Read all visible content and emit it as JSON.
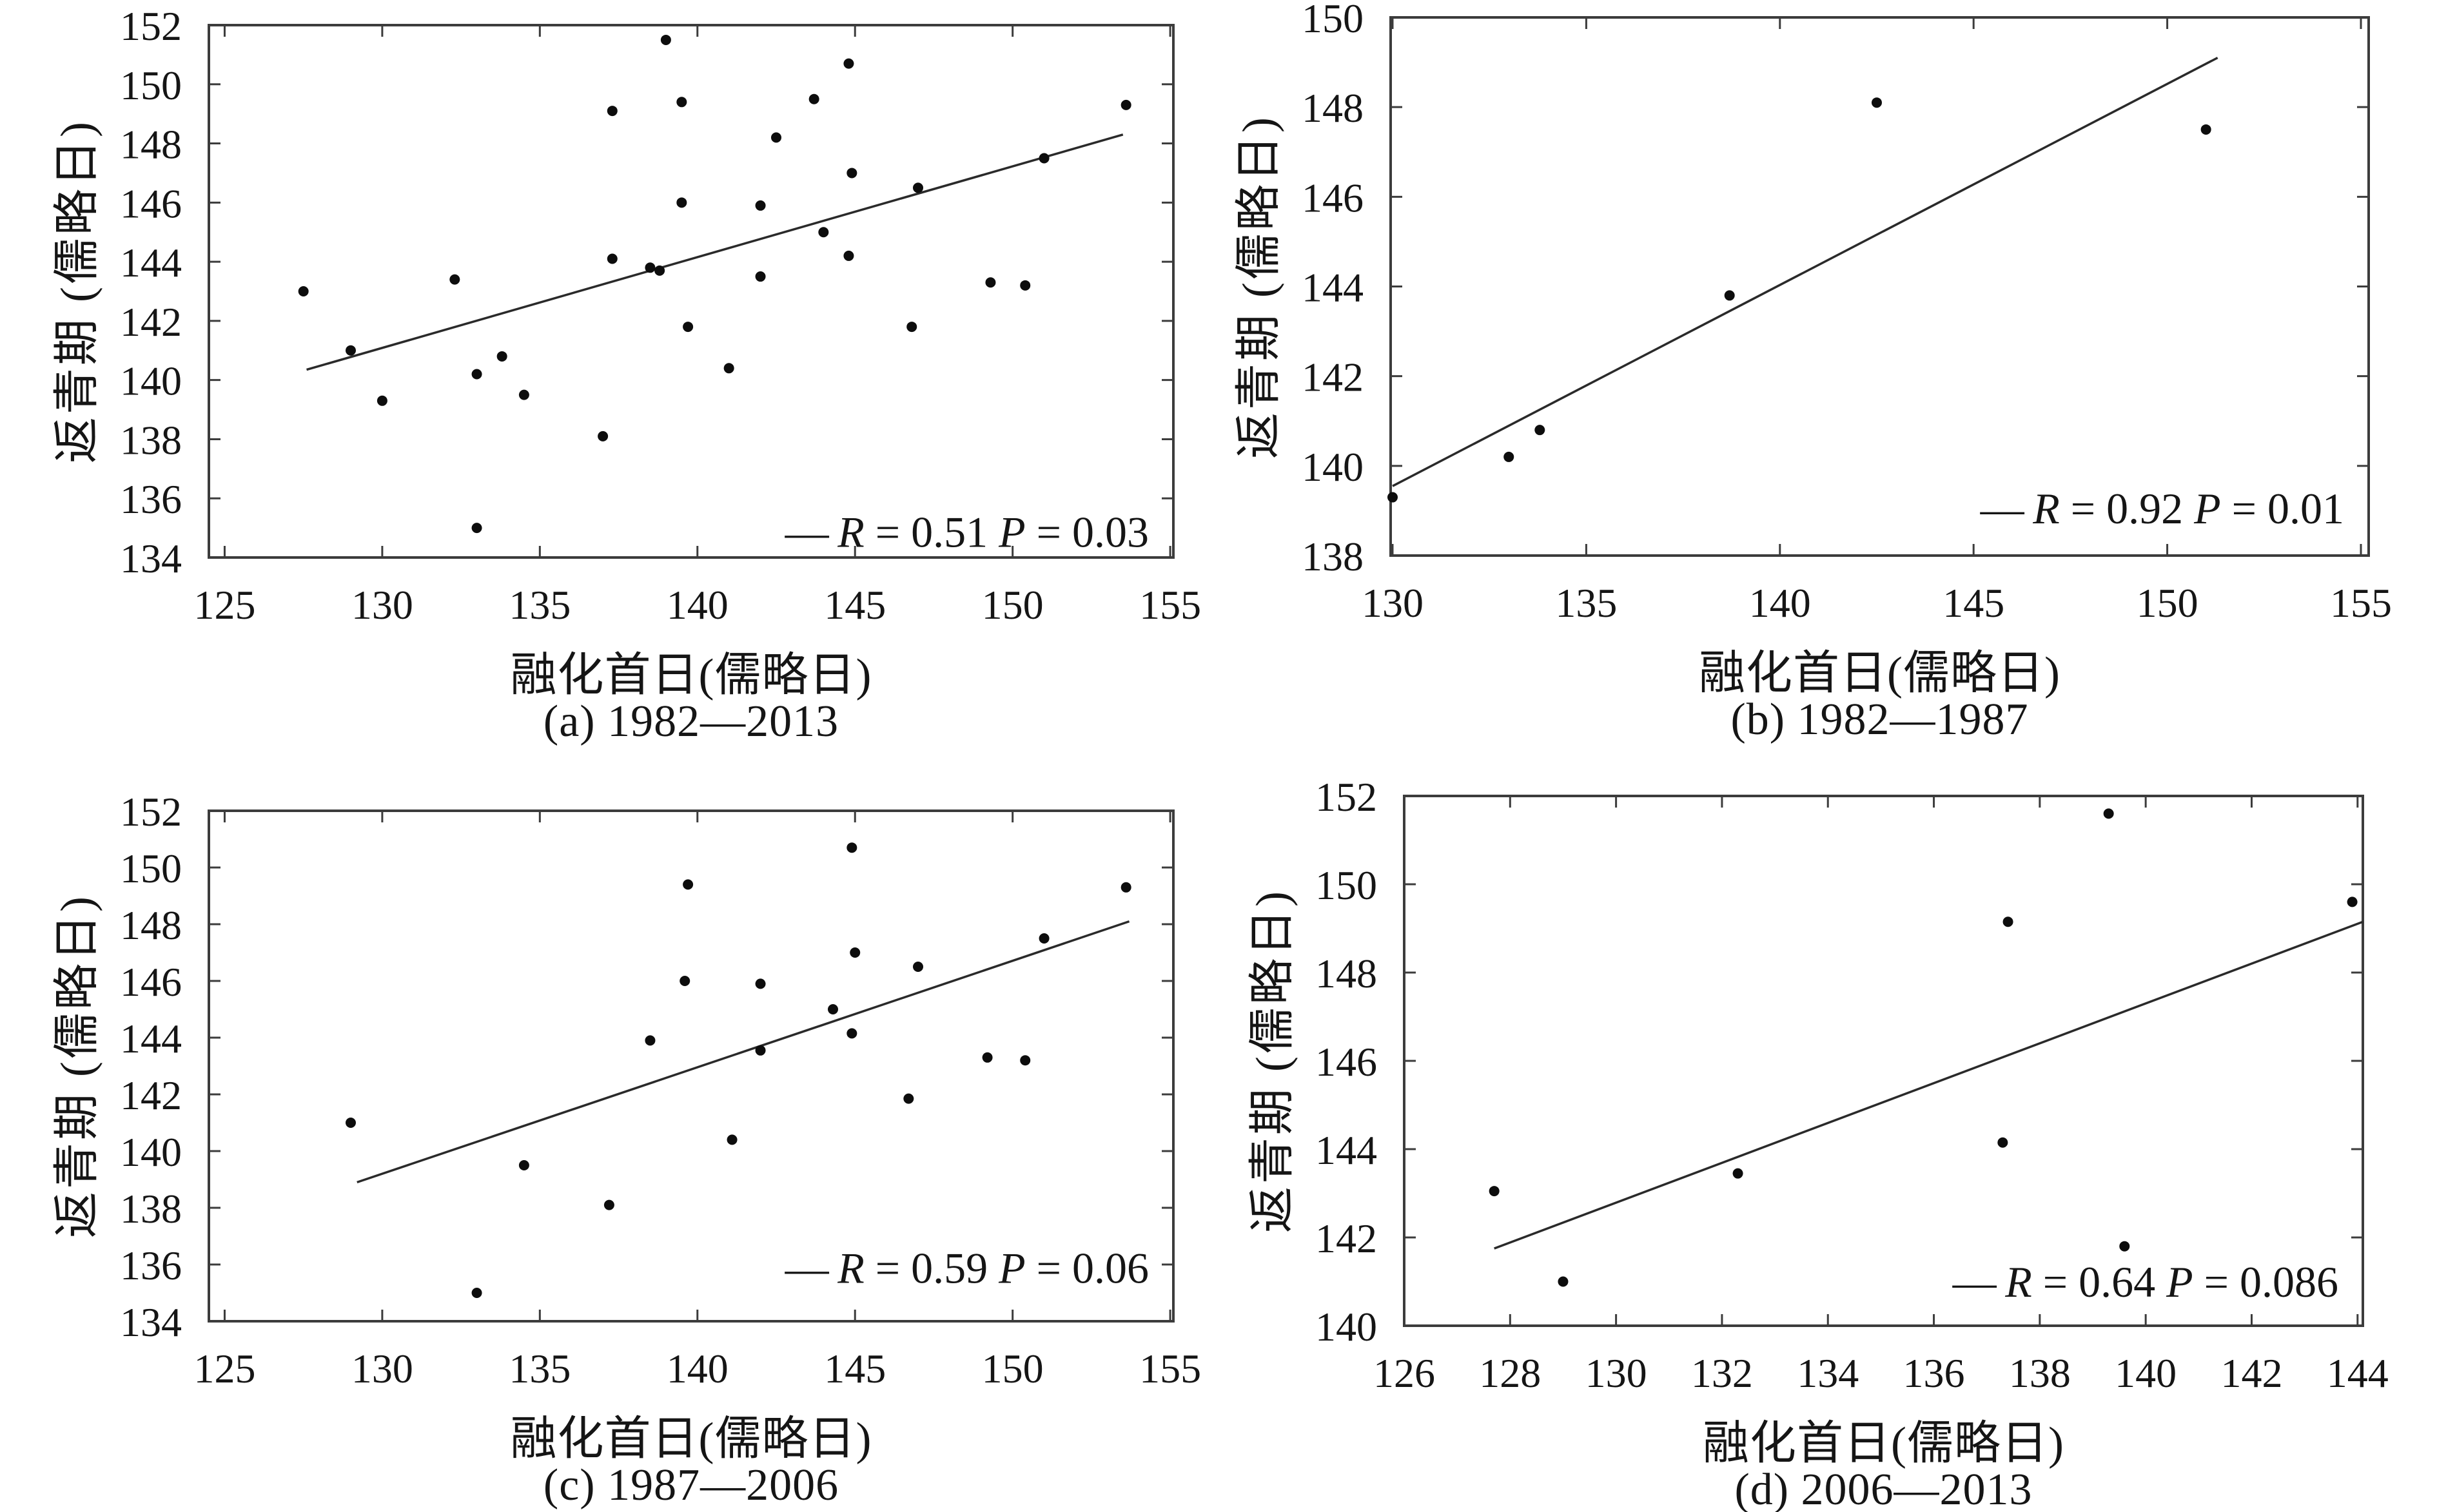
{
  "figure": {
    "background": "#ffffff",
    "description": "Four scatter subplots with linear regression lines relating first thaw day to green-up date (Julian days)"
  },
  "colors": {
    "ink": "#151515",
    "spine": "#3c3c3c",
    "point": "#0d0d0d",
    "trend": "#2a2a2a"
  },
  "chart_data": [
    {
      "id": "a",
      "type": "scatter",
      "caption": "(a) 1982—2013",
      "xlabel": "融化首日(儒略日)",
      "ylabel": "返青期 (儒略日)",
      "legend": {
        "sample": "—",
        "var1": "R",
        "val1": "0.51",
        "var2": "P",
        "val2": "0.03"
      },
      "xlim": [
        124.5,
        155.1
      ],
      "ylim": [
        134,
        152
      ],
      "xticks": [
        125,
        130,
        135,
        140,
        145,
        150,
        155
      ],
      "yticks": [
        134,
        136,
        138,
        140,
        142,
        144,
        146,
        148,
        150,
        152
      ],
      "grid": false,
      "legend_position": "bottom-right",
      "trend_line": {
        "x1": 127.6,
        "y1": 140.35,
        "x2": 153.5,
        "y2": 148.3
      },
      "points": [
        [
          127.5,
          143.0
        ],
        [
          129,
          141.0
        ],
        [
          130,
          139.3
        ],
        [
          132.3,
          143.4
        ],
        [
          133,
          140.2
        ],
        [
          133,
          135.0
        ],
        [
          133.8,
          140.8
        ],
        [
          134.5,
          139.5
        ],
        [
          137,
          138.1
        ],
        [
          137.3,
          144.1
        ],
        [
          137.3,
          149.1
        ],
        [
          138.5,
          143.8
        ],
        [
          138.8,
          143.7
        ],
        [
          139,
          151.5
        ],
        [
          139.5,
          149.4
        ],
        [
          139.5,
          146.0
        ],
        [
          139.7,
          141.8
        ],
        [
          141,
          140.4
        ],
        [
          142,
          145.9
        ],
        [
          142,
          143.5
        ],
        [
          142.5,
          148.2
        ],
        [
          143.7,
          149.5
        ],
        [
          144,
          145.0
        ],
        [
          144.8,
          150.7
        ],
        [
          144.8,
          144.2
        ],
        [
          144.9,
          147.0
        ],
        [
          146.8,
          141.8
        ],
        [
          147,
          146.5
        ],
        [
          149.3,
          143.3
        ],
        [
          150.4,
          143.2
        ],
        [
          151,
          147.5
        ],
        [
          153.6,
          149.3
        ]
      ]
    },
    {
      "id": "b",
      "type": "scatter",
      "caption": "(b) 1982—1987",
      "xlabel": "融化首日(儒略日)",
      "ylabel": "返青期 (儒略日)",
      "legend": {
        "sample": "—",
        "var1": "R",
        "val1": "0.92",
        "var2": "P",
        "val2": "0.01"
      },
      "xlim": [
        129.95,
        155.2
      ],
      "ylim": [
        138,
        150
      ],
      "xticks": [
        130,
        135,
        140,
        145,
        150,
        155
      ],
      "yticks": [
        138,
        140,
        142,
        144,
        146,
        148,
        150
      ],
      "grid": false,
      "legend_position": "bottom-right",
      "trend_line": {
        "x1": 130,
        "y1": 139.55,
        "x2": 151.3,
        "y2": 149.1
      },
      "points": [
        [
          130,
          139.3
        ],
        [
          133,
          140.2
        ],
        [
          133.8,
          140.8
        ],
        [
          138.7,
          143.8
        ],
        [
          142.5,
          148.1
        ],
        [
          151,
          147.5
        ]
      ]
    },
    {
      "id": "c",
      "type": "scatter",
      "caption": "(c) 1987—2006",
      "xlabel": "融化首日(儒略日)",
      "ylabel": "返青期 (儒略日)",
      "legend": {
        "sample": "—",
        "var1": "R",
        "val1": "0.59",
        "var2": "P",
        "val2": "0.06"
      },
      "xlim": [
        124.5,
        155.1
      ],
      "ylim": [
        134,
        152
      ],
      "xticks": [
        125,
        130,
        135,
        140,
        145,
        150,
        155
      ],
      "yticks": [
        134,
        136,
        138,
        140,
        142,
        144,
        146,
        148,
        150,
        152
      ],
      "grid": false,
      "legend_position": "bottom-right",
      "trend_line": {
        "x1": 129.2,
        "y1": 138.9,
        "x2": 153.7,
        "y2": 148.1
      },
      "points": [
        [
          129,
          141.0
        ],
        [
          133,
          135.0
        ],
        [
          134.5,
          139.5
        ],
        [
          137.2,
          138.1
        ],
        [
          138.5,
          143.9
        ],
        [
          139.6,
          146.0
        ],
        [
          139.7,
          149.4
        ],
        [
          141.1,
          140.4
        ],
        [
          142,
          143.55
        ],
        [
          142,
          145.9
        ],
        [
          144.3,
          145.0
        ],
        [
          144.9,
          150.7
        ],
        [
          144.9,
          144.15
        ],
        [
          145,
          147.0
        ],
        [
          146.7,
          141.85
        ],
        [
          147,
          146.5
        ],
        [
          149.2,
          143.3
        ],
        [
          150.4,
          143.2
        ],
        [
          151,
          147.5
        ],
        [
          153.6,
          149.3
        ]
      ]
    },
    {
      "id": "d",
      "type": "scatter",
      "caption": "(d) 2006—2013",
      "xlabel": "融化首日(儒略日)",
      "ylabel": "返青期 (儒略日)",
      "legend": {
        "sample": "—",
        "var1": "R",
        "val1": "0.64",
        "var2": "P",
        "val2": "0.086"
      },
      "xlim": [
        126,
        144.1
      ],
      "ylim": [
        140,
        152
      ],
      "xticks": [
        126,
        128,
        130,
        132,
        134,
        136,
        138,
        140,
        142,
        144
      ],
      "yticks": [
        140,
        142,
        144,
        146,
        148,
        150,
        152
      ],
      "grid": false,
      "legend_position": "bottom-right",
      "trend_line": {
        "x1": 127.7,
        "y1": 141.75,
        "x2": 144.1,
        "y2": 149.15
      },
      "points": [
        [
          127.7,
          143.05
        ],
        [
          129,
          141.0
        ],
        [
          132.3,
          143.45
        ],
        [
          137.3,
          144.15
        ],
        [
          137.4,
          149.15
        ],
        [
          139.3,
          151.6
        ],
        [
          139.6,
          141.8
        ],
        [
          143.9,
          149.6
        ]
      ]
    }
  ]
}
